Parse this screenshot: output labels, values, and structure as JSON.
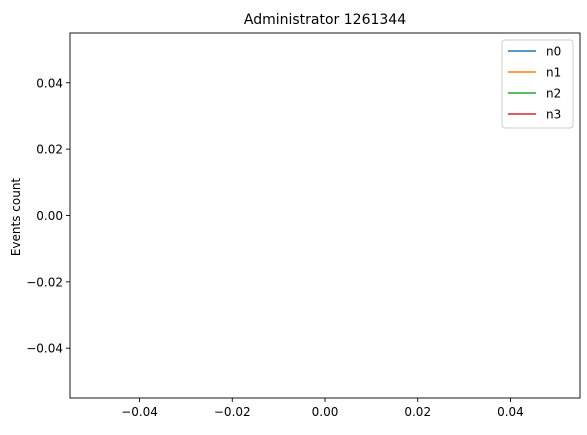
{
  "chart_data": {
    "type": "line",
    "title": "Administrator 1261344",
    "xlabel": "",
    "ylabel": "Events count",
    "xlim": [
      -0.055,
      0.055
    ],
    "ylim": [
      -0.055,
      0.055
    ],
    "x_ticks": [
      -0.04,
      -0.02,
      0.0,
      0.02,
      0.04
    ],
    "x_tick_labels": [
      "−0.04",
      "−0.02",
      "0.00",
      "0.02",
      "0.04"
    ],
    "y_ticks": [
      0.04,
      0.02,
      0.0,
      -0.02,
      -0.04
    ],
    "y_tick_labels": [
      "0.04",
      "0.02",
      "0.00",
      "−0.02",
      "−0.04"
    ],
    "grid": false,
    "legend_position": "top-right",
    "series": [
      {
        "name": "n0",
        "color": "#1f77b4",
        "x": [],
        "y": []
      },
      {
        "name": "n1",
        "color": "#ff7f0e",
        "x": [],
        "y": []
      },
      {
        "name": "n2",
        "color": "#2ca02c",
        "x": [],
        "y": []
      },
      {
        "name": "n3",
        "color": "#d62728",
        "x": [],
        "y": []
      }
    ]
  }
}
